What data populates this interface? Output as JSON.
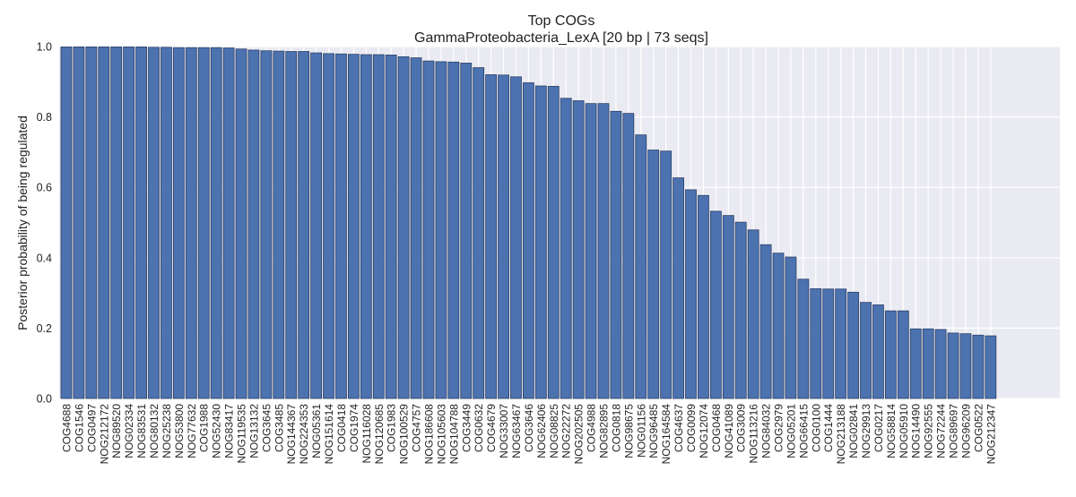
{
  "page": {
    "title_line1": "Top COGs",
    "title_line2": "GammaProteobacteria_LexA [20 bp | 73 seqs]"
  },
  "colors": {
    "plot_background": "#eaeaf2",
    "grid": "#ffffff",
    "bar_fill": "#4c72b0",
    "bar_edge": "#2b3f66",
    "text": "#222222"
  },
  "chart_data": {
    "type": "bar",
    "title": "Top COGs",
    "subtitle": "GammaProteobacteria_LexA [20 bp | 73 seqs]",
    "xlabel": "",
    "ylabel": "Posterior probability of being regulated",
    "ylim": [
      0,
      1.0
    ],
    "yticks": [
      "0.0",
      "0.2",
      "0.4",
      "0.6",
      "0.8",
      "1.0"
    ],
    "grid": true,
    "categories": [
      "COG4688",
      "COG1546",
      "COG0497",
      "NOG212172",
      "NOG89520",
      "NOG02334",
      "NOG83531",
      "NOG80132",
      "NOG25238",
      "NOG53800",
      "NOG77632",
      "COG1988",
      "NOG52430",
      "NOG83417",
      "NOG119535",
      "NOG13132",
      "COG3645",
      "COG3485",
      "NOG144367",
      "NOG224353",
      "NOG05361",
      "NOG151614",
      "COG0418",
      "COG1974",
      "NOG116028",
      "NOG120685",
      "COG1983",
      "NOG100529",
      "COG4757",
      "NOG186608",
      "NOG105603",
      "NOG104788",
      "COG3449",
      "COG0632",
      "COG4679",
      "NOG33007",
      "NOG63467",
      "COG3646",
      "NOG62406",
      "NOG08825",
      "NOG22272",
      "NOG202505",
      "COG4988",
      "NOG82895",
      "COG0818",
      "NOG98675",
      "NOG01156",
      "NOG96485",
      "NOG164584",
      "COG4637",
      "COG0099",
      "NOG12074",
      "COG0468",
      "NOG41089",
      "COG3009",
      "NOG113216",
      "NOG84032",
      "COG2979",
      "NOG05201",
      "NOG66415",
      "COG0100",
      "COG1444",
      "NOG213188",
      "NOG02841",
      "NOG29913",
      "COG0217",
      "NOG58814",
      "NOG05910",
      "NOG14490",
      "NOG92555",
      "NOG72244",
      "NOG89697",
      "NOG96209",
      "COG0522",
      "NOG212347"
    ],
    "values": [
      0.999,
      0.999,
      0.999,
      0.999,
      0.999,
      0.999,
      0.999,
      0.998,
      0.998,
      0.997,
      0.997,
      0.997,
      0.997,
      0.996,
      0.993,
      0.99,
      0.988,
      0.987,
      0.986,
      0.986,
      0.982,
      0.98,
      0.979,
      0.978,
      0.977,
      0.977,
      0.976,
      0.971,
      0.968,
      0.959,
      0.957,
      0.956,
      0.953,
      0.94,
      0.92,
      0.919,
      0.914,
      0.897,
      0.888,
      0.887,
      0.853,
      0.846,
      0.838,
      0.838,
      0.816,
      0.81,
      0.749,
      0.706,
      0.703,
      0.627,
      0.593,
      0.577,
      0.532,
      0.52,
      0.501,
      0.479,
      0.437,
      0.413,
      0.402,
      0.339,
      0.312,
      0.311,
      0.311,
      0.302,
      0.273,
      0.266,
      0.249,
      0.249,
      0.198,
      0.198,
      0.196,
      0.186,
      0.184,
      0.18,
      0.178
    ]
  }
}
